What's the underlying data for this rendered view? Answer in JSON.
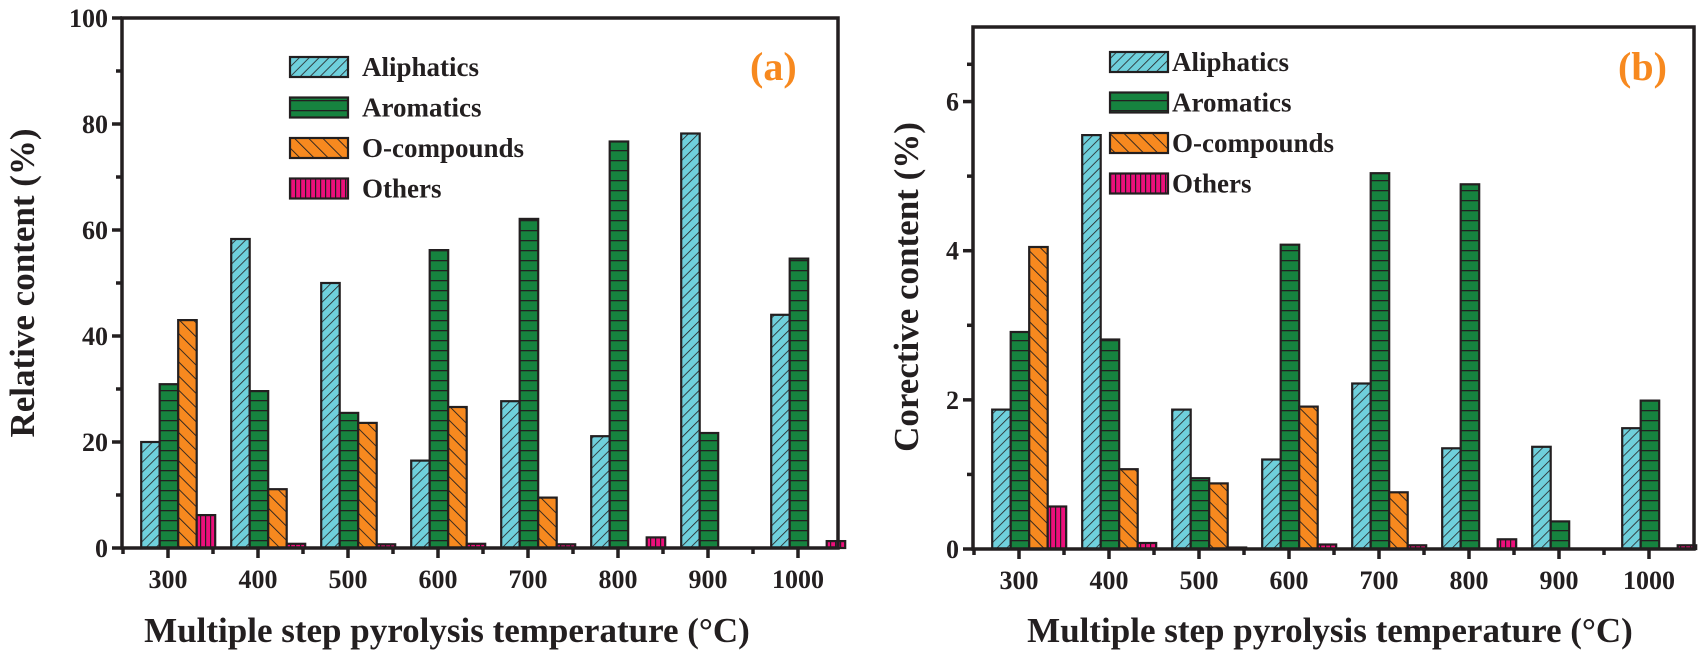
{
  "chart_data": [
    {
      "type": "bar",
      "panel_label": "(a)",
      "title": "",
      "xlabel": "Multiple step pyrolysis temperature (°C)",
      "ylabel": "Relative content (%)",
      "categories": [
        "300",
        "400",
        "500",
        "600",
        "700",
        "800",
        "900",
        "1000"
      ],
      "ylim": [
        0,
        100
      ],
      "yticks": [
        "0",
        "20",
        "40",
        "60",
        "80",
        "100"
      ],
      "ytick_values": [
        0,
        20,
        40,
        60,
        80,
        100
      ],
      "grid": false,
      "legend_position": "top-center",
      "series": [
        {
          "name": "Aliphatics",
          "pattern": "diagonal-forward",
          "color": "#6fd0dc",
          "values": [
            20.0,
            58.3,
            50.0,
            16.5,
            27.7,
            21.1,
            78.2,
            44.0
          ]
        },
        {
          "name": "Aromatics",
          "pattern": "horizontal",
          "color": "#16833f",
          "values": [
            30.9,
            29.6,
            25.5,
            56.2,
            62.1,
            76.7,
            21.7,
            54.6
          ]
        },
        {
          "name": "O-compounds",
          "pattern": "diagonal-back",
          "color": "#f7891f",
          "values": [
            43.0,
            11.1,
            23.6,
            26.6,
            9.5,
            0,
            0,
            0
          ]
        },
        {
          "name": "Others",
          "pattern": "vertical",
          "color": "#ec0f7b",
          "values": [
            6.2,
            0.8,
            0.7,
            0.8,
            0.7,
            2.0,
            0,
            1.3
          ]
        }
      ]
    },
    {
      "type": "bar",
      "panel_label": "(b)",
      "title": "",
      "xlabel": "Multiple step pyrolysis temperature (°C)",
      "ylabel": "Corective content (%)",
      "categories": [
        "300",
        "400",
        "500",
        "600",
        "700",
        "800",
        "900",
        "1000"
      ],
      "ylim": [
        0,
        7
      ],
      "yticks": [
        "0",
        "2",
        "4",
        "6"
      ],
      "ytick_values": [
        0,
        2,
        4,
        6
      ],
      "grid": false,
      "legend_position": "top-center",
      "series": [
        {
          "name": "Aliphatics",
          "pattern": "diagonal-forward",
          "color": "#6fd0dc",
          "values": [
            1.87,
            5.55,
            1.87,
            1.2,
            2.22,
            1.35,
            1.37,
            1.62
          ]
        },
        {
          "name": "Aromatics",
          "pattern": "horizontal",
          "color": "#16833f",
          "values": [
            2.91,
            2.81,
            0.95,
            4.08,
            5.04,
            4.89,
            0.37,
            1.99
          ]
        },
        {
          "name": "O-compounds",
          "pattern": "diagonal-back",
          "color": "#f7891f",
          "values": [
            4.05,
            1.07,
            0.88,
            1.91,
            0.76,
            0,
            0,
            0
          ]
        },
        {
          "name": "Others",
          "pattern": "vertical",
          "color": "#ec0f7b",
          "values": [
            0.57,
            0.08,
            0.02,
            0.06,
            0.05,
            0.13,
            0,
            0.05
          ]
        }
      ]
    }
  ]
}
